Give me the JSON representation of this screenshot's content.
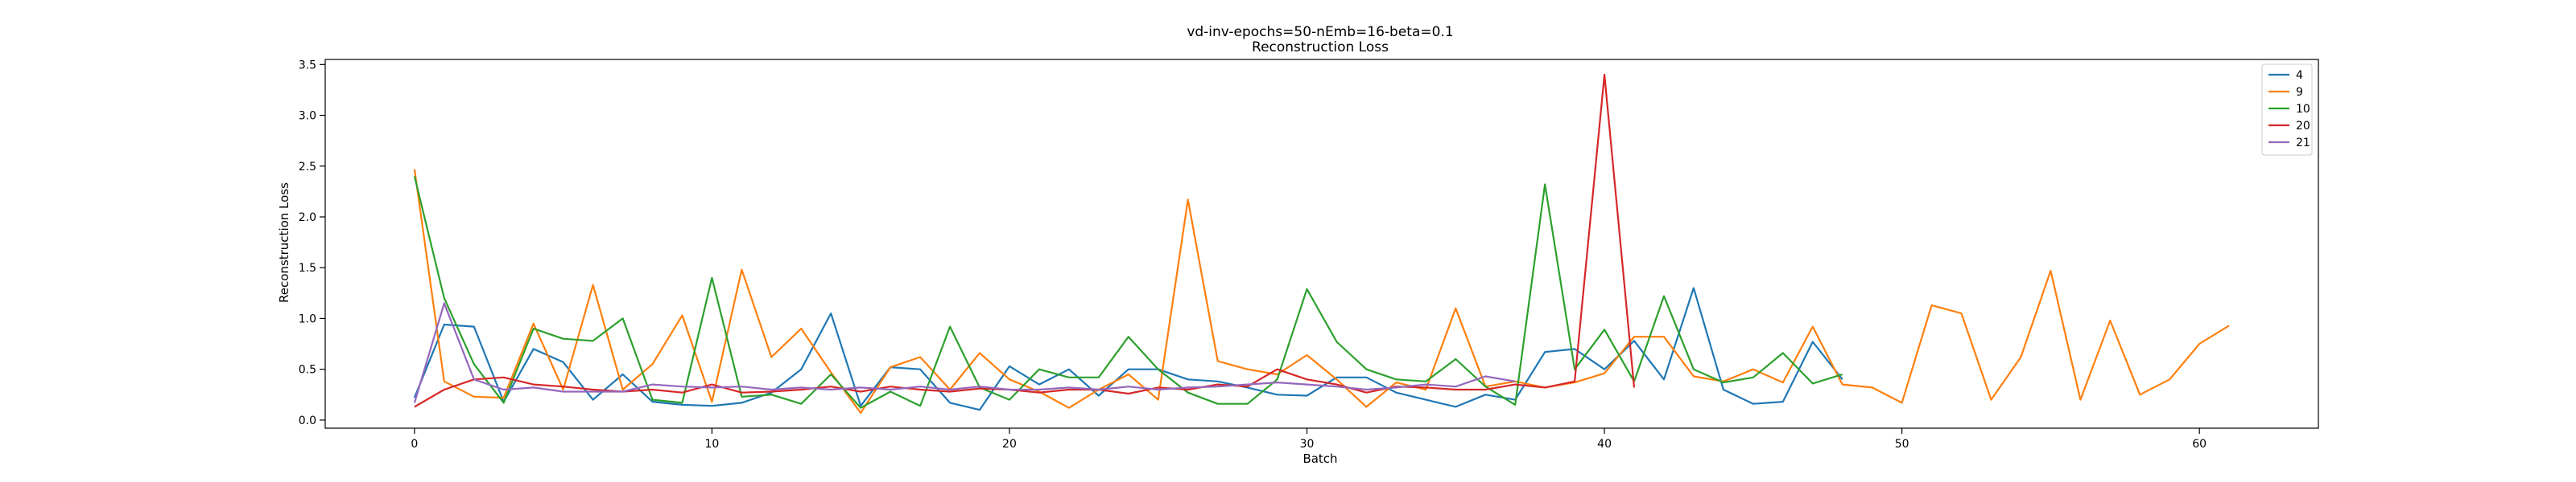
{
  "chart_data": {
    "type": "line",
    "title": "vd-inv-epochs=50-nEmb=16-beta=0.1",
    "subtitle": "Reconstruction Loss",
    "xlabel": "Batch",
    "ylabel": "Reconstruction Loss",
    "xlim": [
      -3,
      64
    ],
    "ylim": [
      -0.08,
      3.55
    ],
    "xticks": [
      0,
      10,
      20,
      30,
      40,
      50,
      60
    ],
    "yticks": [
      0.0,
      0.5,
      1.0,
      1.5,
      2.0,
      2.5,
      3.0,
      3.5
    ],
    "xtick_labels": [
      "0",
      "10",
      "20",
      "30",
      "40",
      "50",
      "60"
    ],
    "ytick_labels": [
      "0.0",
      "0.5",
      "1.0",
      "1.5",
      "2.0",
      "2.5",
      "3.0",
      "3.5"
    ],
    "grid": false,
    "legend_position": "top-right",
    "series": [
      {
        "name": "4",
        "color": "#1f77b4",
        "x": [
          0,
          1,
          2,
          3,
          4,
          5,
          6,
          7,
          8,
          9,
          10,
          11,
          12,
          13,
          14,
          15,
          16,
          17,
          18,
          19,
          20,
          21,
          22,
          23,
          24,
          25,
          26,
          27,
          28,
          29,
          30,
          31,
          32,
          33,
          34,
          35,
          36,
          37,
          38,
          39,
          40,
          41,
          42,
          43,
          44,
          45,
          46,
          47,
          48
        ],
        "values": [
          0.22,
          0.94,
          0.92,
          0.18,
          0.7,
          0.57,
          0.2,
          0.45,
          0.18,
          0.15,
          0.14,
          0.17,
          0.27,
          0.5,
          1.05,
          0.14,
          0.52,
          0.5,
          0.17,
          0.1,
          0.53,
          0.35,
          0.5,
          0.24,
          0.5,
          0.5,
          0.4,
          0.38,
          0.32,
          0.25,
          0.24,
          0.42,
          0.42,
          0.27,
          0.2,
          0.13,
          0.25,
          0.2,
          0.67,
          0.7,
          0.5,
          0.78,
          0.4,
          1.3,
          0.3,
          0.16,
          0.18,
          0.77,
          0.4
        ]
      },
      {
        "name": "9",
        "color": "#ff7f0e",
        "x": [
          0,
          1,
          2,
          3,
          4,
          5,
          6,
          7,
          8,
          9,
          10,
          11,
          12,
          13,
          14,
          15,
          16,
          17,
          18,
          19,
          20,
          21,
          22,
          23,
          24,
          25,
          26,
          27,
          28,
          29,
          30,
          31,
          32,
          33,
          34,
          35,
          36,
          37,
          38,
          39,
          40,
          41,
          42,
          43,
          44,
          45,
          46,
          47,
          48,
          49,
          50,
          51,
          52,
          53,
          54,
          55,
          56,
          57,
          58,
          59,
          60,
          61
        ],
        "values": [
          2.47,
          0.38,
          0.23,
          0.22,
          0.95,
          0.3,
          1.33,
          0.3,
          0.55,
          1.03,
          0.18,
          1.48,
          0.62,
          0.9,
          0.47,
          0.07,
          0.52,
          0.62,
          0.3,
          0.66,
          0.4,
          0.28,
          0.12,
          0.3,
          0.45,
          0.2,
          2.17,
          0.58,
          0.5,
          0.45,
          0.64,
          0.4,
          0.13,
          0.37,
          0.3,
          1.1,
          0.33,
          0.38,
          0.32,
          0.37,
          0.46,
          0.82,
          0.82,
          0.43,
          0.38,
          0.5,
          0.37,
          0.92,
          0.35,
          0.32,
          0.17,
          1.13,
          1.05,
          0.2,
          0.62,
          1.47,
          0.2,
          0.98,
          0.25,
          0.4,
          0.75,
          0.93
        ]
      },
      {
        "name": "10",
        "color": "#2ca02c",
        "x": [
          0,
          1,
          2,
          3,
          4,
          5,
          6,
          7,
          8,
          9,
          10,
          11,
          12,
          13,
          14,
          15,
          16,
          17,
          18,
          19,
          20,
          21,
          22,
          23,
          24,
          25,
          26,
          27,
          28,
          29,
          30,
          31,
          32,
          33,
          34,
          35,
          36,
          37,
          38,
          39,
          40,
          41,
          42,
          43,
          44,
          45,
          46,
          47,
          48
        ],
        "values": [
          2.4,
          1.2,
          0.55,
          0.17,
          0.9,
          0.8,
          0.78,
          1.0,
          0.2,
          0.17,
          1.4,
          0.23,
          0.25,
          0.16,
          0.45,
          0.12,
          0.28,
          0.14,
          0.92,
          0.32,
          0.2,
          0.5,
          0.42,
          0.42,
          0.82,
          0.5,
          0.27,
          0.16,
          0.16,
          0.4,
          1.29,
          0.77,
          0.5,
          0.4,
          0.38,
          0.6,
          0.33,
          0.15,
          2.32,
          0.5,
          0.89,
          0.38,
          1.22,
          0.5,
          0.37,
          0.42,
          0.66,
          0.36,
          0.45
        ]
      },
      {
        "name": "20",
        "color": "#d62728",
        "x": [
          0,
          1,
          2,
          3,
          4,
          5,
          6,
          7,
          8,
          9,
          10,
          11,
          12,
          13,
          14,
          15,
          16,
          17,
          18,
          19,
          20,
          21,
          22,
          23,
          24,
          25,
          26,
          27,
          28,
          29,
          30,
          31,
          32,
          33,
          34,
          35,
          36,
          37,
          38,
          39,
          40,
          41
        ],
        "values": [
          0.13,
          0.3,
          0.4,
          0.42,
          0.35,
          0.33,
          0.3,
          0.28,
          0.3,
          0.27,
          0.35,
          0.27,
          0.28,
          0.3,
          0.33,
          0.28,
          0.33,
          0.3,
          0.28,
          0.31,
          0.3,
          0.27,
          0.3,
          0.3,
          0.26,
          0.32,
          0.3,
          0.35,
          0.33,
          0.5,
          0.4,
          0.35,
          0.27,
          0.33,
          0.32,
          0.3,
          0.3,
          0.35,
          0.32,
          0.38,
          3.4,
          0.32
        ]
      },
      {
        "name": "21",
        "color": "#9467bd",
        "x": [
          0,
          1,
          2,
          3,
          4,
          5,
          6,
          7,
          8,
          9,
          10,
          11,
          12,
          13,
          14,
          15,
          16,
          17,
          18,
          19,
          20,
          21,
          22,
          23,
          24,
          25,
          26,
          27,
          28,
          29,
          30,
          31,
          32,
          33,
          34,
          35,
          36,
          37
        ],
        "values": [
          0.17,
          1.15,
          0.4,
          0.3,
          0.32,
          0.28,
          0.28,
          0.28,
          0.35,
          0.33,
          0.32,
          0.33,
          0.3,
          0.32,
          0.3,
          0.32,
          0.3,
          0.33,
          0.3,
          0.33,
          0.3,
          0.3,
          0.32,
          0.3,
          0.33,
          0.3,
          0.32,
          0.33,
          0.35,
          0.37,
          0.35,
          0.33,
          0.3,
          0.32,
          0.35,
          0.33,
          0.43,
          0.38
        ]
      }
    ]
  }
}
